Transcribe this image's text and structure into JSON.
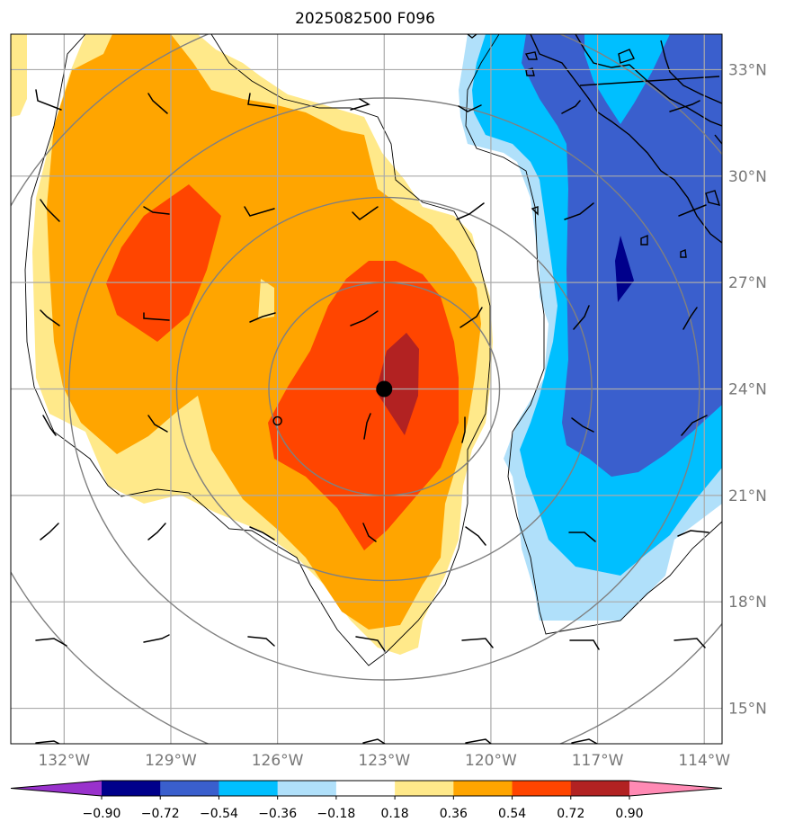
{
  "figure": {
    "title": "2025082500 F096"
  },
  "map": {
    "lon_range": [
      -133.5,
      -113.5
    ],
    "lat_range": [
      14,
      34
    ],
    "lon_ticks": [
      -132,
      -129,
      -126,
      -123,
      -120,
      -117,
      -114
    ],
    "lon_tick_labels": [
      "132°W",
      "129°W",
      "126°W",
      "123°W",
      "120°W",
      "117°W",
      "114°W"
    ],
    "lat_ticks": [
      15,
      18,
      21,
      24,
      27,
      30,
      33
    ],
    "lat_tick_labels": [
      "15°N",
      "18°N",
      "21°N",
      "24°N",
      "27°N",
      "30°N",
      "33°N"
    ],
    "grid": true,
    "storm_center": {
      "lon": -123,
      "lat": 24
    },
    "secondary_marker": {
      "lon": -126,
      "lat": 23.1
    },
    "range_rings_deg": [
      3,
      5.4,
      8.2,
      11
    ]
  },
  "colorbar": {
    "levels": [
      "−0.90",
      "−0.72",
      "−0.54",
      "−0.36",
      "−0.18",
      "0.18",
      "0.36",
      "0.54",
      "0.72",
      "0.90"
    ],
    "colors": [
      "#9932cc",
      "#00008b",
      "#3a5fcd",
      "#00bfff",
      "#b0e0fa",
      "#ffffff",
      "#ffe98a",
      "#ffa500",
      "#ff4500",
      "#b22222",
      "#ff8ab4"
    ],
    "extend": "both"
  },
  "colors": {
    "grid": "#aaaaaa",
    "ring": "#808080",
    "coast": "#000000"
  }
}
